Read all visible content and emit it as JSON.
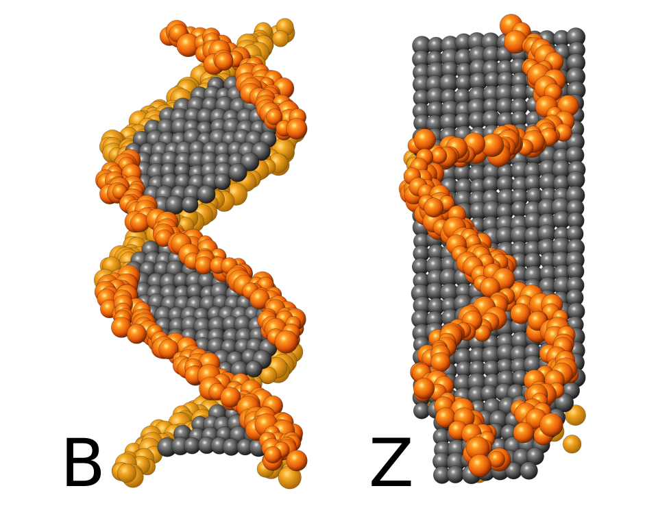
{
  "labels": {
    "left": "B",
    "right": "Z"
  },
  "colors": {
    "backbone": "#f07a10",
    "backbone_light": "#ff9a20",
    "backbone_back": "#f0a020",
    "base": "#505050",
    "base_light": "#9a9a9a",
    "background": "#ffffff"
  }
}
